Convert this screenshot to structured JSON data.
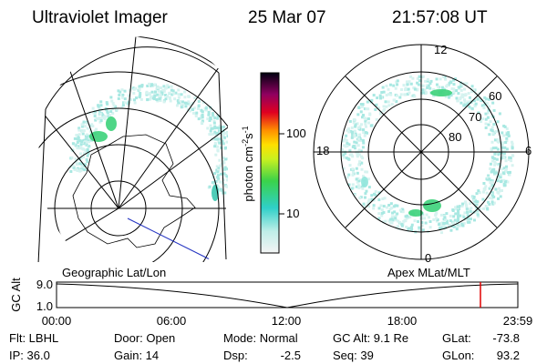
{
  "header": {
    "title": "Ultraviolet Imager",
    "date": "25 Mar 07",
    "time": "21:57:08 UT"
  },
  "colorbar": {
    "label": {
      "base": "photon cm",
      "exp1": "-2",
      "unit2": "s",
      "exp2": "-1"
    },
    "tick_labels": [
      "100",
      "10"
    ]
  },
  "polar_plot": {
    "mlt_labels": [
      "12",
      "18",
      "6",
      "0"
    ],
    "mlat_labels": [
      "60",
      "70",
      "80"
    ]
  },
  "timeline": {
    "left_title": "Geographic Lat/Lon",
    "right_title": "Apex MLat/MLT",
    "axis_label": "GC Alt",
    "y_labels": [
      "9.0",
      "1.0"
    ],
    "times": [
      "00:00",
      "06:00",
      "12:00",
      "18:00",
      "23:59"
    ]
  },
  "footer": {
    "rows": [
      [
        "Flt: LBHL",
        "Door: Open",
        "Mode: Normal",
        "GC Alt: 9.1 Re",
        "GLat:",
        "-73.8"
      ],
      [
        "IP: 36.0",
        "Gain: 14",
        "Dsp:",
        "-2.5",
        "Seq: 39",
        "GLon:",
        "93.2"
      ]
    ]
  }
}
